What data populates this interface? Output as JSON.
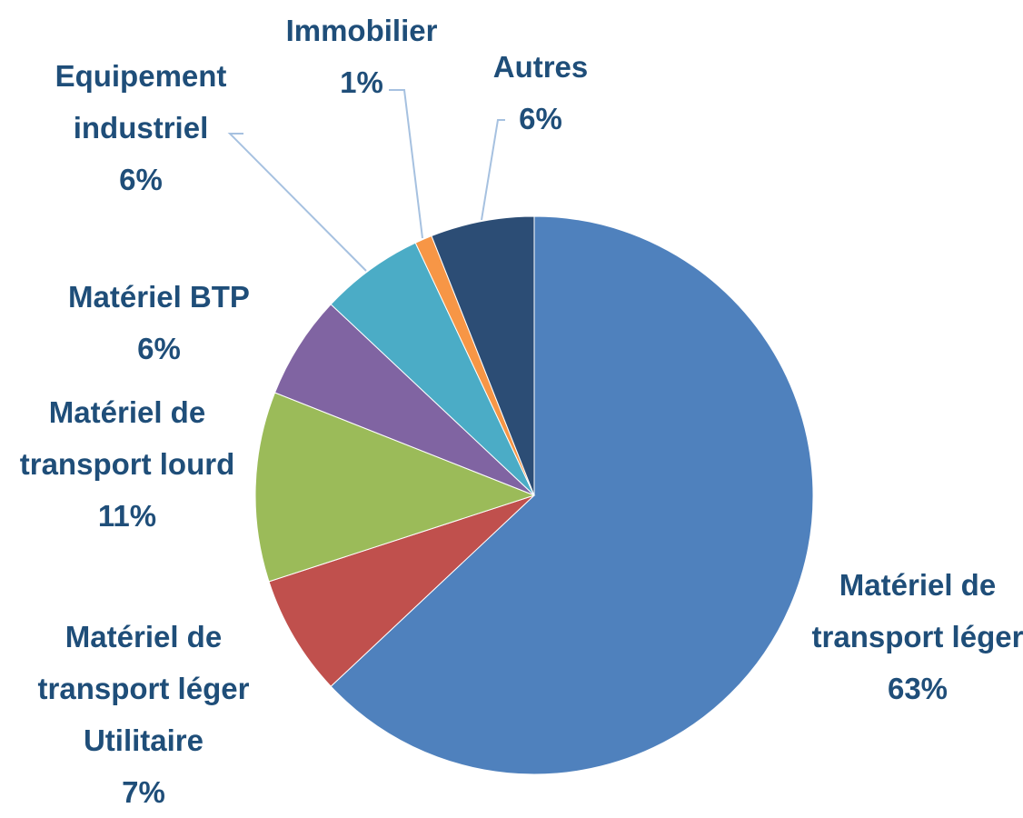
{
  "chart_data": {
    "type": "pie",
    "categories": [
      "Matériel de transport léger",
      "Matériel de transport léger Utilitaire",
      "Matériel de transport lourd",
      "Matériel BTP",
      "Equipement industriel",
      "Immobilier",
      "Autres"
    ],
    "values": [
      63,
      7,
      11,
      6,
      6,
      1,
      6
    ],
    "value_labels": [
      "63%",
      "7%",
      "11%",
      "6%",
      "6%",
      "1%",
      "6%"
    ],
    "colors": [
      "#4f81bd",
      "#c0504d",
      "#9bbb59",
      "#8064a2",
      "#4bacc6",
      "#f79646",
      "#2c4d75"
    ]
  }
}
